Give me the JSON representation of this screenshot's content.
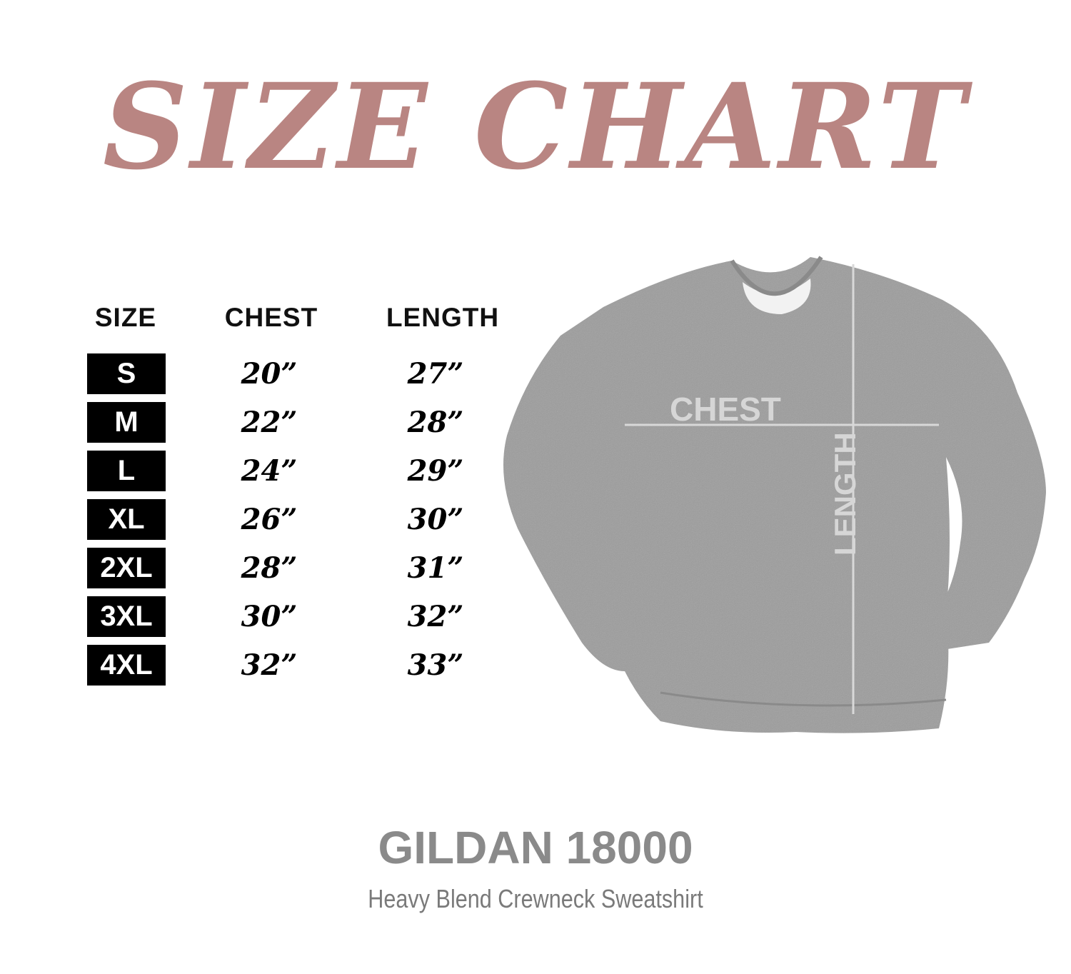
{
  "title": "SIZE CHART",
  "title_color": "#b98582",
  "table": {
    "headers": [
      "SIZE",
      "CHEST",
      "LENGTH"
    ],
    "rows": [
      {
        "size": "S",
        "chest": "20”",
        "length": "27”"
      },
      {
        "size": "M",
        "chest": "22”",
        "length": "28”"
      },
      {
        "size": "L",
        "chest": "24”",
        "length": "29”"
      },
      {
        "size": "XL",
        "chest": "26”",
        "length": "30”"
      },
      {
        "size": "2XL",
        "chest": "28”",
        "length": "31”"
      },
      {
        "size": "3XL",
        "chest": "30”",
        "length": "32”"
      },
      {
        "size": "4XL",
        "chest": "32”",
        "length": "33”"
      }
    ]
  },
  "diagram": {
    "chest_label": "CHEST",
    "length_label": "LENGTH",
    "shirt_color": "#9a9a9a"
  },
  "footer": {
    "brand": "GILDAN 18000",
    "description": "Heavy Blend Crewneck Sweatshirt"
  }
}
